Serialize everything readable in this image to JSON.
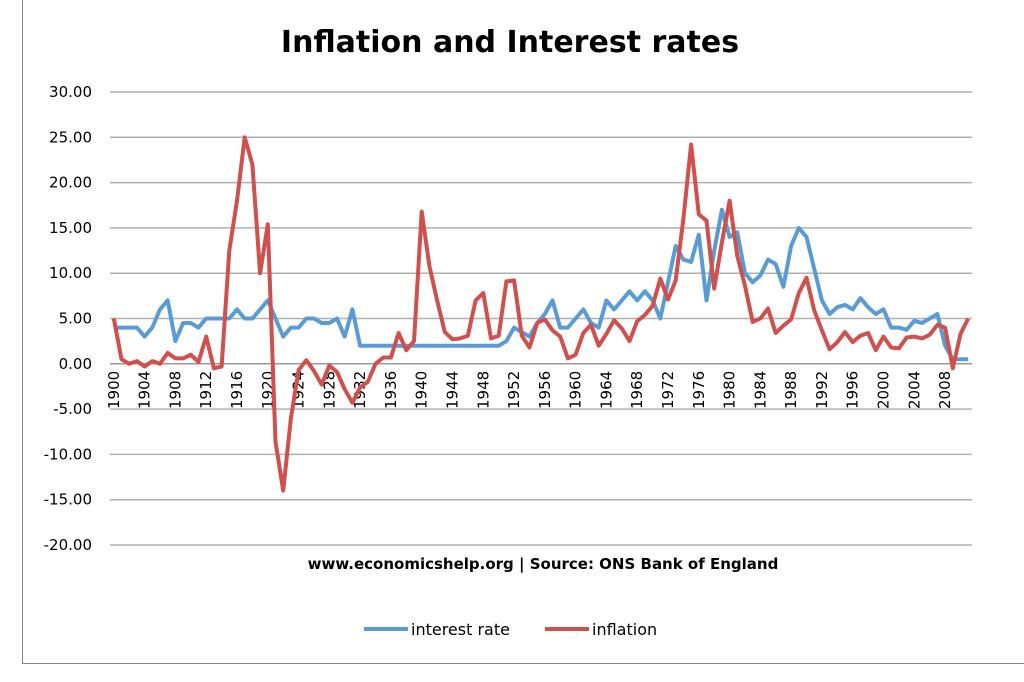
{
  "chart_data": {
    "type": "line",
    "title": "Inflation and Interest rates",
    "annotation": "www.economicshelp.org | Source: ONS Bank of England",
    "xlabel": "",
    "ylabel": "",
    "ylim": [
      -20,
      30
    ],
    "ytick_step": 5,
    "grid": true,
    "legend": "bottom",
    "x_start": 1900,
    "x_end": 2011,
    "x_tick_labels": [
      "1900",
      "1904",
      "1908",
      "1912",
      "1916",
      "1920",
      "1924",
      "1928",
      "1932",
      "1936",
      "1940",
      "1944",
      "1948",
      "1952",
      "1956",
      "1960",
      "1964",
      "1968",
      "1972",
      "1976",
      "1980",
      "1984",
      "1988",
      "1992",
      "1996",
      "2000",
      "2004",
      "2008"
    ],
    "y_tick_labels": [
      "30.00",
      "25.00",
      "20.00",
      "15.00",
      "10.00",
      "5.00",
      "0.00",
      "-5.00",
      "-10.00",
      "-15.00",
      "-20.00"
    ],
    "series": [
      {
        "name": "interest rate",
        "color": "#5b9bd5",
        "values": [
          4,
          4,
          4,
          4,
          3,
          4,
          6,
          7,
          2.5,
          4.5,
          4.5,
          4,
          5,
          5,
          5,
          5,
          6,
          5,
          5,
          6,
          7,
          5,
          3,
          4,
          4,
          5,
          5,
          4.5,
          4.5,
          5,
          3,
          6,
          2,
          2,
          2,
          2,
          2,
          2,
          2,
          2,
          2,
          2,
          2,
          2,
          2,
          2,
          2,
          2,
          2,
          2,
          2,
          2.5,
          4,
          3.5,
          3,
          4.5,
          5.5,
          7,
          4,
          4,
          5,
          6,
          4.5,
          4,
          7,
          6,
          7,
          8,
          7,
          8,
          7,
          5,
          9,
          13,
          11.5,
          11.25,
          14.25,
          7,
          12.5,
          17,
          14,
          14.5,
          10,
          9,
          9.75,
          11.5,
          11,
          8.5,
          13,
          15,
          14,
          10.5,
          7,
          5.5,
          6.25,
          6.5,
          6,
          7.25,
          6.25,
          5.5,
          6,
          4,
          4,
          3.75,
          4.75,
          4.5,
          5,
          5.5,
          2,
          0.5,
          0.5,
          0.5
        ]
      },
      {
        "name": "inflation",
        "color": "#d0504d",
        "values": [
          5,
          0.5,
          0,
          0.3,
          -0.3,
          0.3,
          0,
          1.2,
          0.6,
          0.6,
          1,
          0.2,
          3,
          -0.5,
          -0.3,
          12.5,
          18,
          25,
          22,
          10,
          15.4,
          -8.6,
          -14,
          -6,
          -0.7,
          0.4,
          -0.8,
          -2.3,
          -0.2,
          -0.9,
          -2.8,
          -4.3,
          -2.6,
          -2,
          0,
          0.7,
          0.7,
          3.4,
          1.5,
          2.5,
          16.8,
          10.8,
          7,
          3.5,
          2.7,
          2.8,
          3.1,
          7,
          7.8,
          2.8,
          3.1,
          9.1,
          9.2,
          3.1,
          1.8,
          4.5,
          4.9,
          3.7,
          3,
          0.6,
          1,
          3.4,
          4.3,
          2,
          3.3,
          4.8,
          3.9,
          2.5,
          4.7,
          5.4,
          6.4,
          9.4,
          7.1,
          9.2,
          16,
          24.2,
          16.5,
          15.8,
          8.3,
          13.4,
          18,
          11.9,
          8.6,
          4.6,
          5,
          6.1,
          3.4,
          4.2,
          4.9,
          7.8,
          9.5,
          5.9,
          3.7,
          1.6,
          2.4,
          3.5,
          2.4,
          3.1,
          3.4,
          1.5,
          3,
          1.8,
          1.7,
          2.9,
          3,
          2.8,
          3.2,
          4.3,
          4,
          -0.5,
          3.3,
          5
        ]
      }
    ]
  }
}
